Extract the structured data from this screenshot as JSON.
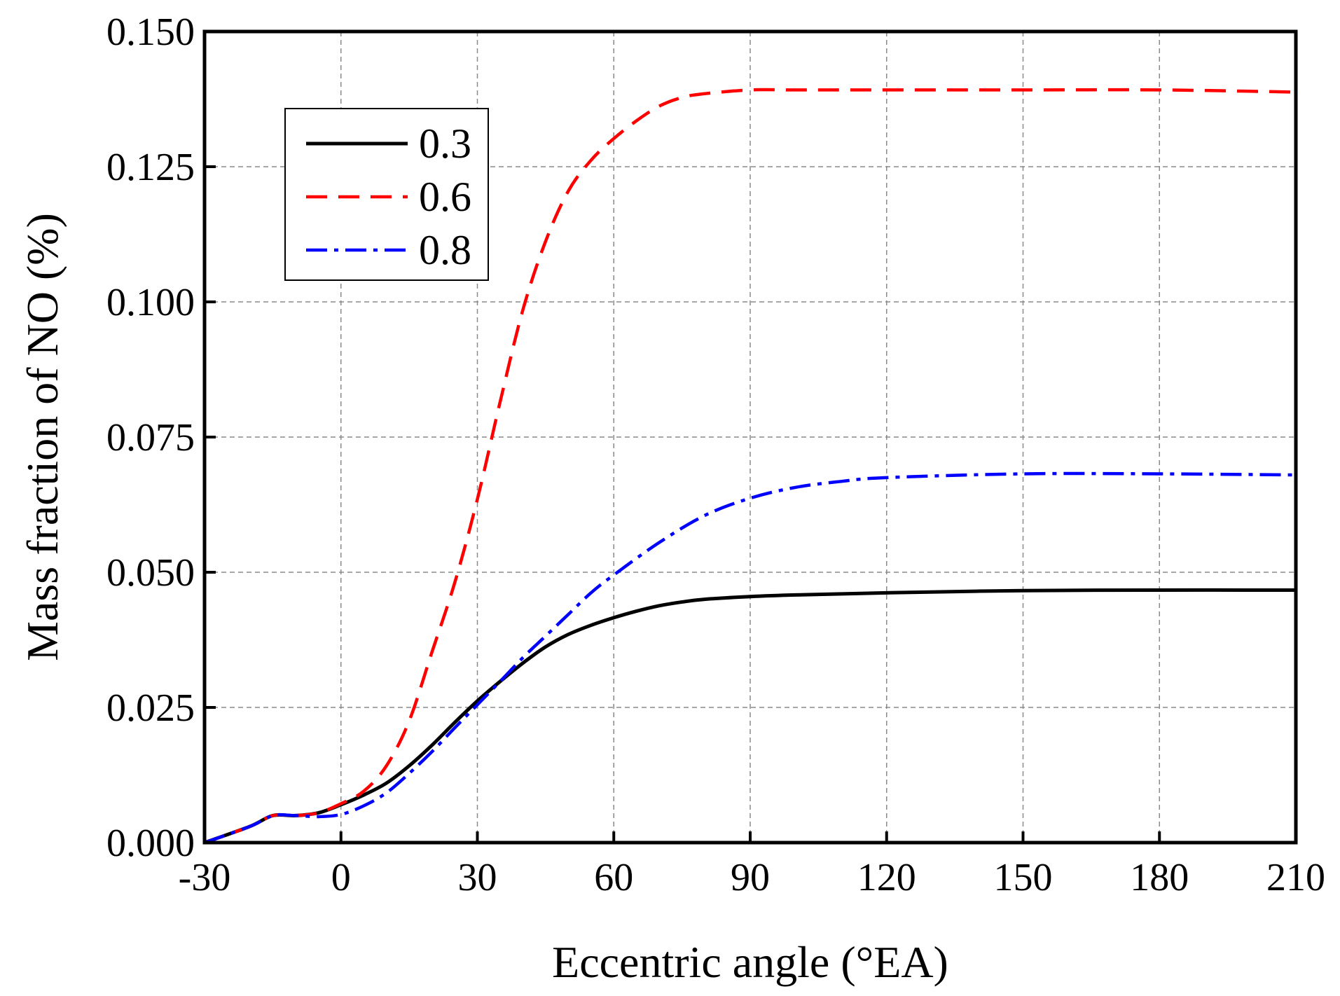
{
  "chart_data": {
    "type": "line",
    "xlabel": "Eccentric angle (°EA)",
    "ylabel": "Mass fraction of NO (%)",
    "xlim": [
      -30,
      210
    ],
    "ylim": [
      0,
      0.15
    ],
    "xticks": [
      -30,
      0,
      30,
      60,
      90,
      120,
      150,
      180,
      210
    ],
    "xtick_labels": [
      "-30",
      "0",
      "30",
      "60",
      "90",
      "120",
      "150",
      "180",
      "210"
    ],
    "yticks": [
      0,
      0.025,
      0.05,
      0.075,
      0.1,
      0.125,
      0.15
    ],
    "ytick_labels": [
      "0.000",
      "0.025",
      "0.050",
      "0.075",
      "0.100",
      "0.125",
      "0.150"
    ],
    "grid": true,
    "legend_position": "top-left",
    "series": [
      {
        "name": "0.3",
        "color": "#000000",
        "style": "solid",
        "x": [
          -30,
          -20,
          -15,
          -10,
          -5,
          0,
          5,
          10,
          15,
          20,
          25,
          30,
          35,
          40,
          45,
          50,
          55,
          60,
          65,
          70,
          75,
          80,
          90,
          100,
          120,
          150,
          180,
          210
        ],
        "y": [
          0.0,
          0.003,
          0.005,
          0.005,
          0.0055,
          0.007,
          0.0088,
          0.011,
          0.0142,
          0.018,
          0.0222,
          0.0262,
          0.0298,
          0.0332,
          0.0362,
          0.0385,
          0.0402,
          0.0416,
          0.0428,
          0.0438,
          0.0445,
          0.045,
          0.0455,
          0.0458,
          0.0462,
          0.0466,
          0.0467,
          0.0467
        ]
      },
      {
        "name": "0.6",
        "color": "#ff0000",
        "style": "dashed",
        "x": [
          -30,
          -20,
          -15,
          -10,
          -5,
          0,
          5,
          10,
          15,
          20,
          25,
          30,
          35,
          40,
          45,
          50,
          55,
          60,
          65,
          70,
          75,
          80,
          90,
          100,
          120,
          150,
          180,
          210
        ],
        "y": [
          0.0,
          0.003,
          0.005,
          0.005,
          0.0055,
          0.0072,
          0.0095,
          0.0142,
          0.0225,
          0.0352,
          0.048,
          0.0635,
          0.0815,
          0.0985,
          0.1112,
          0.1205,
          0.1262,
          0.1302,
          0.1335,
          0.1362,
          0.1378,
          0.1385,
          0.1392,
          0.1392,
          0.1392,
          0.1392,
          0.1392,
          0.1388
        ]
      },
      {
        "name": "0.8",
        "color": "#0000ff",
        "style": "dashdot",
        "x": [
          -30,
          -20,
          -15,
          -10,
          -5,
          0,
          5,
          10,
          15,
          20,
          25,
          30,
          35,
          40,
          45,
          50,
          55,
          60,
          70,
          80,
          90,
          100,
          110,
          120,
          150,
          180,
          210
        ],
        "y": [
          0.0,
          0.003,
          0.005,
          0.005,
          0.0048,
          0.0052,
          0.0068,
          0.0092,
          0.0128,
          0.0168,
          0.0212,
          0.0255,
          0.0298,
          0.0342,
          0.0382,
          0.0422,
          0.0462,
          0.0495,
          0.0555,
          0.0605,
          0.0637,
          0.0657,
          0.0668,
          0.0675,
          0.0682,
          0.0682,
          0.068
        ]
      }
    ]
  }
}
